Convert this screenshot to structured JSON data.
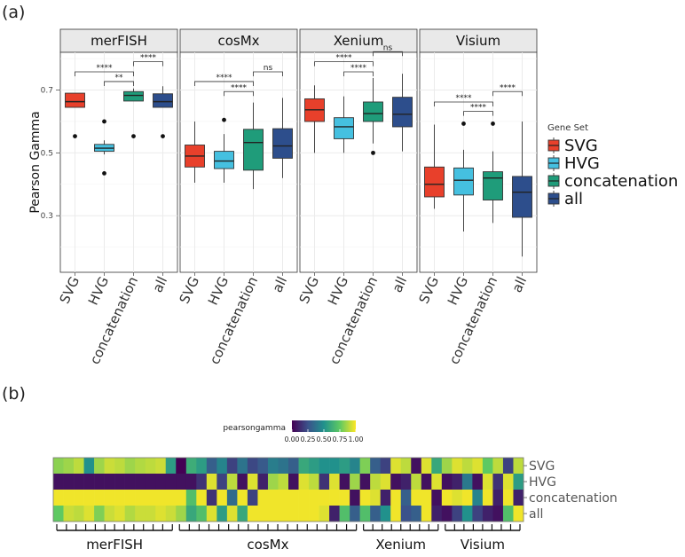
{
  "panel_a_label": "(a)",
  "panel_b_label": "(b)",
  "colors": {
    "SVG": "#e8402b",
    "HVG": "#45c0e0",
    "concatenation": "#1f9c7a",
    "all": "#2d4e8c",
    "strip_bg": "#e9e9e9",
    "grid": "#ebebeb"
  },
  "chart_data": [
    {
      "type": "boxplot",
      "ylabel": "Pearson Gamma",
      "yticks": [
        0.3,
        0.5,
        0.7
      ],
      "ylim": [
        0.12,
        0.82
      ],
      "categories": [
        "SVG",
        "HVG",
        "concatenation",
        "all"
      ],
      "legend": {
        "title": "Gene Set",
        "entries": [
          "SVG",
          "HVG",
          "concatenation",
          "all"
        ],
        "position": "right"
      },
      "facets": [
        {
          "name": "merFISH",
          "boxes": [
            {
              "group": "SVG",
              "q1": 0.645,
              "median": 0.663,
              "q3": 0.69,
              "lower": 0.645,
              "upper": 0.69,
              "outliers": [
                0.553
              ]
            },
            {
              "group": "HVG",
              "q1": 0.505,
              "median": 0.515,
              "q3": 0.527,
              "lower": 0.495,
              "upper": 0.54,
              "outliers": [
                0.435,
                0.6
              ]
            },
            {
              "group": "concatenation",
              "q1": 0.665,
              "median": 0.683,
              "q3": 0.695,
              "lower": 0.665,
              "upper": 0.705,
              "outliers": [
                0.553
              ]
            },
            {
              "group": "all",
              "q1": 0.645,
              "median": 0.663,
              "q3": 0.688,
              "lower": 0.645,
              "upper": 0.712,
              "outliers": [
                0.553
              ]
            }
          ],
          "brackets": [
            {
              "from": "SVG",
              "to": "concatenation",
              "label": "****",
              "y": 0.758
            },
            {
              "from": "HVG",
              "to": "concatenation",
              "label": "**",
              "y": 0.727
            },
            {
              "from": "concatenation",
              "to": "all",
              "label": "****",
              "y": 0.79
            }
          ]
        },
        {
          "name": "cosMx",
          "boxes": [
            {
              "group": "SVG",
              "q1": 0.455,
              "median": 0.49,
              "q3": 0.525,
              "lower": 0.405,
              "upper": 0.6,
              "outliers": []
            },
            {
              "group": "HVG",
              "q1": 0.45,
              "median": 0.474,
              "q3": 0.505,
              "lower": 0.405,
              "upper": 0.56,
              "outliers": [
                0.605
              ]
            },
            {
              "group": "concatenation",
              "q1": 0.445,
              "median": 0.533,
              "q3": 0.575,
              "lower": 0.385,
              "upper": 0.66,
              "outliers": []
            },
            {
              "group": "all",
              "q1": 0.483,
              "median": 0.522,
              "q3": 0.577,
              "lower": 0.42,
              "upper": 0.675,
              "outliers": []
            }
          ],
          "brackets": [
            {
              "from": "SVG",
              "to": "concatenation",
              "label": "****",
              "y": 0.727
            },
            {
              "from": "HVG",
              "to": "concatenation",
              "label": "****",
              "y": 0.695
            },
            {
              "from": "concatenation",
              "to": "all",
              "label": "ns",
              "y": 0.758
            }
          ]
        },
        {
          "name": "Xenium",
          "boxes": [
            {
              "group": "SVG",
              "q1": 0.6,
              "median": 0.637,
              "q3": 0.672,
              "lower": 0.5,
              "upper": 0.715,
              "outliers": []
            },
            {
              "group": "HVG",
              "q1": 0.545,
              "median": 0.583,
              "q3": 0.612,
              "lower": 0.5,
              "upper": 0.68,
              "outliers": []
            },
            {
              "group": "concatenation",
              "q1": 0.6,
              "median": 0.625,
              "q3": 0.662,
              "lower": 0.53,
              "upper": 0.738,
              "outliers": [
                0.5
              ]
            },
            {
              "group": "all",
              "q1": 0.583,
              "median": 0.623,
              "q3": 0.677,
              "lower": 0.505,
              "upper": 0.752,
              "outliers": []
            }
          ],
          "brackets": [
            {
              "from": "SVG",
              "to": "concatenation",
              "label": "****",
              "y": 0.79
            },
            {
              "from": "HVG",
              "to": "concatenation",
              "label": "****",
              "y": 0.758
            },
            {
              "from": "concatenation",
              "to": "all",
              "label": "ns",
              "y": 0.822
            }
          ]
        },
        {
          "name": "Visium",
          "boxes": [
            {
              "group": "SVG",
              "q1": 0.36,
              "median": 0.4,
              "q3": 0.455,
              "lower": 0.322,
              "upper": 0.59,
              "outliers": []
            },
            {
              "group": "HVG",
              "q1": 0.366,
              "median": 0.413,
              "q3": 0.452,
              "lower": 0.25,
              "upper": 0.51,
              "outliers": [
                0.593
              ]
            },
            {
              "group": "concatenation",
              "q1": 0.35,
              "median": 0.42,
              "q3": 0.44,
              "lower": 0.277,
              "upper": 0.505,
              "outliers": [
                0.593
              ]
            },
            {
              "group": "all",
              "q1": 0.295,
              "median": 0.375,
              "q3": 0.425,
              "lower": 0.17,
              "upper": 0.6,
              "outliers": []
            }
          ],
          "brackets": [
            {
              "from": "SVG",
              "to": "concatenation",
              "label": "****",
              "y": 0.662
            },
            {
              "from": "HVG",
              "to": "concatenation",
              "label": "****",
              "y": 0.632
            },
            {
              "from": "concatenation",
              "to": "all",
              "label": "****",
              "y": 0.695
            }
          ]
        }
      ]
    },
    {
      "type": "heatmap",
      "legend_title": "pearsongamma",
      "legend_ticks": [
        "0.00",
        "0.25",
        "0.50",
        "0.75",
        "1.00"
      ],
      "rows": [
        "SVG",
        "HVG",
        "concatenation",
        "all"
      ],
      "colormap": [
        "#440154",
        "#3b528b",
        "#21918c",
        "#5ec962",
        "#fde725"
      ],
      "groups": [
        {
          "name": "merFISH",
          "start": 0,
          "end": 12
        },
        {
          "name": "cosMx",
          "start": 12,
          "end": 30
        },
        {
          "name": "Xenium",
          "start": 30,
          "end": 38
        },
        {
          "name": "Visium",
          "start": 38,
          "end": 46
        }
      ],
      "values": [
        [
          0.82,
          0.85,
          0.9,
          0.5,
          0.85,
          0.92,
          0.9,
          0.85,
          0.88,
          0.9,
          0.92,
          0.55,
          0.0,
          0.62,
          0.55,
          0.3,
          0.45,
          0.2,
          0.38,
          0.22,
          0.28,
          0.42,
          0.38,
          0.3,
          0.6,
          0.55,
          0.5,
          0.5,
          0.55,
          0.45,
          0.8,
          0.3,
          0.2,
          0.95,
          0.9,
          0.05,
          0.95,
          0.6,
          0.85,
          0.95,
          0.9,
          0.95,
          0.75,
          0.9,
          0.2,
          0.9
        ],
        [
          0.05,
          0.05,
          0.05,
          0.05,
          0.05,
          0.05,
          0.05,
          0.05,
          0.05,
          0.05,
          0.05,
          0.05,
          0.05,
          0.05,
          0.15,
          0.95,
          0.2,
          0.9,
          0.05,
          0.95,
          0.1,
          0.85,
          0.9,
          0.05,
          0.95,
          0.9,
          0.15,
          0.95,
          0.05,
          0.85,
          0.05,
          0.9,
          0.95,
          0.05,
          0.1,
          0.9,
          0.05,
          0.95,
          0.05,
          0.1,
          0.4,
          0.05,
          0.95,
          0.15,
          0.95,
          0.55
        ],
        [
          0.98,
          0.98,
          0.98,
          0.98,
          0.98,
          0.98,
          0.98,
          0.98,
          0.98,
          0.98,
          0.98,
          0.98,
          0.98,
          0.7,
          0.98,
          0.15,
          0.98,
          0.35,
          0.98,
          0.2,
          0.98,
          0.98,
          0.98,
          0.98,
          0.98,
          0.98,
          0.98,
          0.98,
          0.98,
          0.05,
          0.98,
          0.95,
          0.1,
          0.98,
          0.3,
          0.98,
          0.98,
          0.05,
          0.98,
          0.95,
          0.98,
          0.45,
          0.98,
          0.1,
          0.98,
          0.1
        ],
        [
          0.75,
          0.92,
          0.9,
          0.95,
          0.8,
          0.92,
          0.95,
          0.88,
          0.92,
          0.92,
          0.95,
          0.92,
          0.85,
          0.6,
          0.7,
          0.95,
          0.55,
          0.95,
          0.6,
          0.98,
          0.98,
          0.98,
          0.98,
          0.98,
          0.98,
          0.98,
          0.95,
          0.1,
          0.7,
          0.3,
          0.7,
          0.3,
          0.5,
          0.98,
          0.25,
          0.3,
          0.98,
          0.1,
          0.05,
          0.2,
          0.5,
          0.2,
          0.1,
          0.05,
          0.7,
          0.98
        ]
      ]
    }
  ]
}
